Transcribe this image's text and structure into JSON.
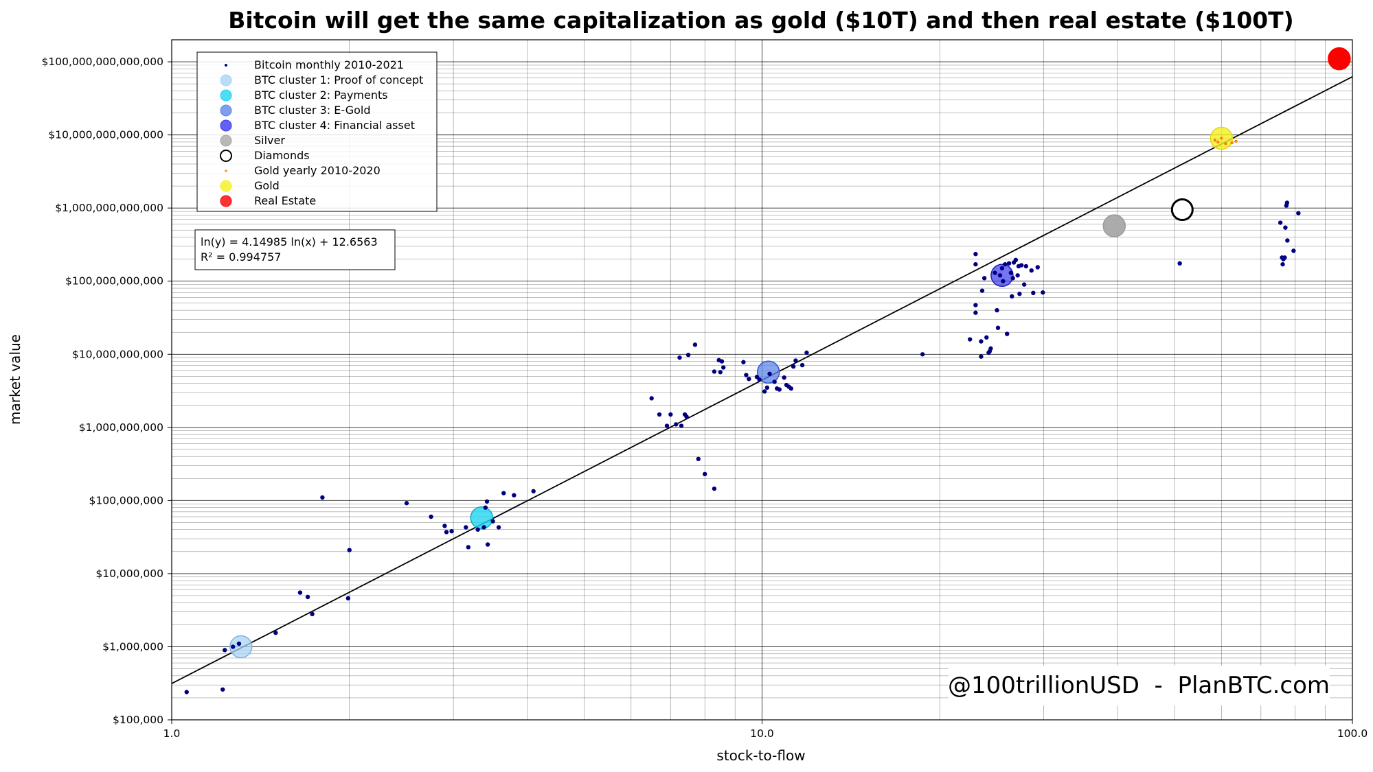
{
  "chart_data": {
    "type": "scatter",
    "title": "Bitcoin will get the same capitalization as gold ($10T) and then real estate ($100T)",
    "xlabel": "stock-to-flow",
    "ylabel": "market value",
    "xscale": "log",
    "yscale": "log",
    "xlim": [
      1,
      100
    ],
    "ylim": [
      100000,
      200000000000000
    ],
    "grid": "major and minor",
    "x_ticks": [
      {
        "value": 1,
        "label": "1.0"
      },
      {
        "value": 10,
        "label": "10.0"
      },
      {
        "value": 100,
        "label": "100.0"
      }
    ],
    "y_ticks": [
      {
        "value": 100000,
        "label": "$100,000"
      },
      {
        "value": 1000000,
        "label": "$1,000,000"
      },
      {
        "value": 10000000,
        "label": "$10,000,000"
      },
      {
        "value": 100000000,
        "label": "$100,000,000"
      },
      {
        "value": 1000000000,
        "label": "$1,000,000,000"
      },
      {
        "value": 10000000000,
        "label": "$10,000,000,000"
      },
      {
        "value": 100000000000,
        "label": "$100,000,000,000"
      },
      {
        "value": 1000000000000,
        "label": "$1,000,000,000,000"
      },
      {
        "value": 10000000000000,
        "label": "$10,000,000,000,000"
      },
      {
        "value": 100000000000000,
        "label": "$100,000,000,000,000"
      }
    ],
    "fit": {
      "a": 4.14985,
      "b": 12.6563,
      "equation": "ln(y) = 4.14985 ln(x) + 12.6563",
      "r2": "R² = 0.994757"
    },
    "legend": {
      "location": "upper-left",
      "entries": [
        {
          "label": "Bitcoin monthly 2010-2021",
          "marker": "dot",
          "color": "#000080"
        },
        {
          "label": "BTC cluster 1: Proof of concept",
          "marker": "circle",
          "color": "#aad4f5"
        },
        {
          "label": "BTC cluster 2: Payments",
          "marker": "circle",
          "color": "#22d4f0"
        },
        {
          "label": "BTC cluster 3: E-Gold",
          "marker": "circle",
          "color": "#5f86e8"
        },
        {
          "label": "BTC cluster 4: Financial asset",
          "marker": "circle",
          "color": "#3a3af0"
        },
        {
          "label": "Silver",
          "marker": "circle",
          "color": "#a8a8a8"
        },
        {
          "label": "Diamonds",
          "marker": "open-circle",
          "color": "#000000"
        },
        {
          "label": "Gold yearly 2010-2020",
          "marker": "small-dot",
          "color": "#ff7f0e"
        },
        {
          "label": "Gold",
          "marker": "circle",
          "color": "#f5f020"
        },
        {
          "label": "Real Estate",
          "marker": "circle",
          "color": "#ff0000"
        }
      ]
    },
    "series": [
      {
        "name": "Bitcoin monthly 2010-2021",
        "color": "#000080",
        "points": [
          [
            1.06,
            240000
          ],
          [
            1.22,
            260000
          ],
          [
            1.23,
            900000
          ],
          [
            1.27,
            1000000
          ],
          [
            1.3,
            1100000
          ],
          [
            1.5,
            1550000
          ],
          [
            1.65,
            5500000
          ],
          [
            1.7,
            4800000
          ],
          [
            1.73,
            2800000
          ],
          [
            1.8,
            110000000
          ],
          [
            1.99,
            4600000
          ],
          [
            2.0,
            21000000
          ],
          [
            2.5,
            92000000
          ],
          [
            2.75,
            60000000
          ],
          [
            2.9,
            45000000
          ],
          [
            2.92,
            37000000
          ],
          [
            2.98,
            38000000
          ],
          [
            3.15,
            43000000
          ],
          [
            3.18,
            23000000
          ],
          [
            3.3,
            40000000
          ],
          [
            3.38,
            43000000
          ],
          [
            3.4,
            80000000
          ],
          [
            3.42,
            97000000
          ],
          [
            3.43,
            25000000
          ],
          [
            3.5,
            52000000
          ],
          [
            3.58,
            43000000
          ],
          [
            3.65,
            126000000
          ],
          [
            3.8,
            118000000
          ],
          [
            4.1,
            134000000
          ],
          [
            6.5,
            2500000000
          ],
          [
            6.7,
            1500000000
          ],
          [
            6.9,
            1050000000
          ],
          [
            7.0,
            1500000000
          ],
          [
            7.15,
            1100000000
          ],
          [
            7.3,
            1050000000
          ],
          [
            7.4,
            1500000000
          ],
          [
            7.45,
            1400000000
          ],
          [
            7.25,
            9000000000
          ],
          [
            7.5,
            9800000000
          ],
          [
            7.7,
            13500000000
          ],
          [
            7.8,
            370000000
          ],
          [
            8.0,
            230000000
          ],
          [
            8.3,
            5800000000
          ],
          [
            8.45,
            8300000000
          ],
          [
            8.5,
            5700000000
          ],
          [
            8.55,
            8000000000
          ],
          [
            8.6,
            6600000000
          ],
          [
            8.3,
            145000000
          ],
          [
            9.3,
            7800000000
          ],
          [
            9.4,
            5200000000
          ],
          [
            9.5,
            4600000000
          ],
          [
            9.8,
            4900000000
          ],
          [
            9.9,
            4500000000
          ],
          [
            10.1,
            3100000000
          ],
          [
            10.2,
            3500000000
          ],
          [
            10.3,
            5400000000
          ],
          [
            10.5,
            4200000000
          ],
          [
            10.6,
            3400000000
          ],
          [
            10.7,
            3300000000
          ],
          [
            10.9,
            4800000000
          ],
          [
            11.0,
            3800000000
          ],
          [
            11.1,
            3600000000
          ],
          [
            11.2,
            3400000000
          ],
          [
            11.3,
            6800000000
          ],
          [
            11.4,
            8200000000
          ],
          [
            11.7,
            7100000000
          ],
          [
            11.9,
            10500000000
          ],
          [
            18.7,
            10000000000
          ],
          [
            22.5,
            16000000000
          ],
          [
            23.0,
            47000000000
          ],
          [
            23.0,
            37000000000
          ],
          [
            23.0,
            170000000000
          ],
          [
            23.0,
            235000000000
          ],
          [
            23.5,
            15000000000
          ],
          [
            23.5,
            9300000000
          ],
          [
            23.6,
            74000000000
          ],
          [
            23.8,
            110000000000
          ],
          [
            24.0,
            17000000000
          ],
          [
            24.2,
            10500000000
          ],
          [
            24.4,
            12000000000
          ],
          [
            24.3,
            11000000000
          ],
          [
            24.8,
            130000000000
          ],
          [
            25.0,
            40000000000
          ],
          [
            25.1,
            23000000000
          ],
          [
            25.3,
            120000000000
          ],
          [
            25.5,
            150000000000
          ],
          [
            25.6,
            100000000000
          ],
          [
            25.8,
            170000000000
          ],
          [
            26.0,
            19000000000
          ],
          [
            26.2,
            175000000000
          ],
          [
            26.4,
            130000000000
          ],
          [
            26.5,
            62000000000
          ],
          [
            26.6,
            110000000000
          ],
          [
            26.7,
            180000000000
          ],
          [
            26.9,
            195000000000
          ],
          [
            27.1,
            120000000000
          ],
          [
            27.2,
            160000000000
          ],
          [
            27.3,
            67000000000
          ],
          [
            27.5,
            165000000000
          ],
          [
            27.8,
            90000000000
          ],
          [
            28.0,
            160000000000
          ],
          [
            28.6,
            140000000000
          ],
          [
            28.8,
            69000000000
          ],
          [
            29.3,
            155000000000
          ],
          [
            29.9,
            70000000000
          ],
          [
            51.0,
            175000000000
          ],
          [
            75.5,
            630000000000
          ],
          [
            76.0,
            210000000000
          ],
          [
            76.2,
            170000000000
          ],
          [
            76.4,
            200000000000
          ],
          [
            76.8,
            210000000000
          ],
          [
            77.0,
            540000000000
          ],
          [
            77.3,
            1080000000000
          ],
          [
            77.5,
            1180000000000
          ],
          [
            77.6,
            360000000000
          ],
          [
            79.5,
            260000000000
          ],
          [
            81.0,
            850000000000
          ]
        ]
      },
      {
        "name": "BTC cluster 1: Proof of concept",
        "color": "#aad4f5",
        "points": [
          [
            1.31,
            1000000
          ]
        ]
      },
      {
        "name": "BTC cluster 2: Payments",
        "color": "#22d4f0",
        "points": [
          [
            3.35,
            58000000
          ]
        ]
      },
      {
        "name": "BTC cluster 3: E-Gold",
        "color": "#5f86e8",
        "points": [
          [
            10.25,
            5700000000
          ]
        ]
      },
      {
        "name": "BTC cluster 4: Financial asset",
        "color": "#3a3af0",
        "points": [
          [
            25.5,
            120000000000
          ]
        ]
      },
      {
        "name": "Silver",
        "color": "#a8a8a8",
        "points": [
          [
            39.5,
            570000000000
          ]
        ]
      },
      {
        "name": "Diamonds",
        "color": "#000000",
        "points": [
          [
            51.5,
            950000000000
          ]
        ]
      },
      {
        "name": "Gold yearly 2010-2020",
        "color": "#ff7f0e",
        "points": [
          [
            58.5,
            8500000000000
          ],
          [
            59.2,
            8000000000000
          ],
          [
            60.0,
            9000000000000
          ],
          [
            61.0,
            7600000000000
          ],
          [
            62.5,
            7800000000000
          ],
          [
            63.5,
            8200000000000
          ]
        ]
      },
      {
        "name": "Gold",
        "color": "#f5f020",
        "points": [
          [
            60.0,
            9000000000000
          ]
        ]
      },
      {
        "name": "Real Estate",
        "color": "#ff0000",
        "points": [
          [
            95.0,
            110000000000000
          ]
        ]
      }
    ],
    "watermark": "@100trillionUSD  -  PlanBTC.com"
  }
}
